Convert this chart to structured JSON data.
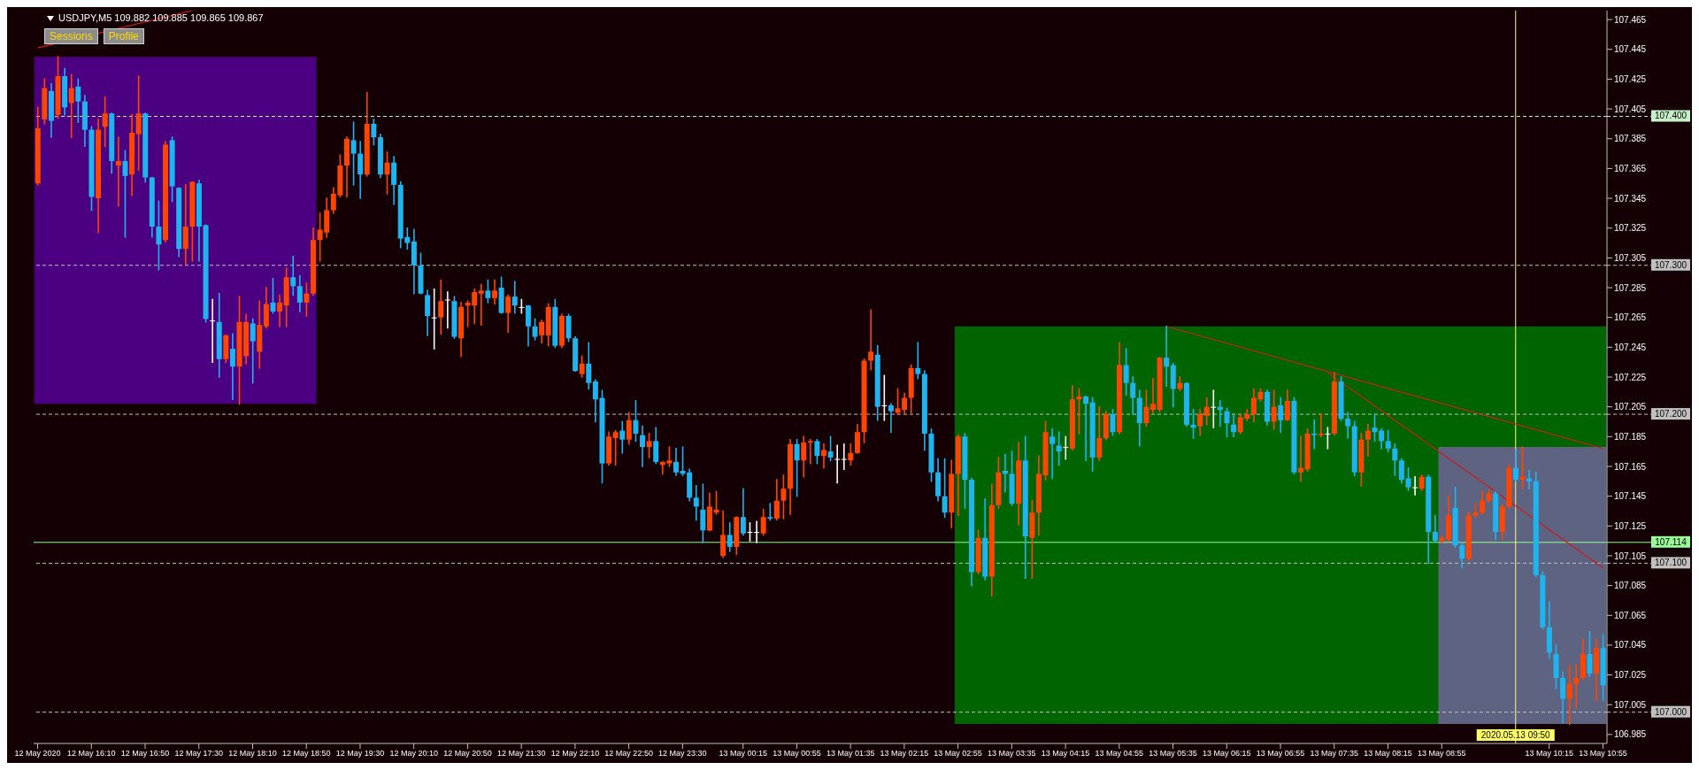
{
  "chart_data": {
    "type": "candlestick",
    "title": "USDJPY,M5 109.882 109.885 109.865 109.867",
    "annotations": [
      "Sessions",
      "Profile"
    ],
    "colors": [
      "#ff4500",
      "#ff4500",
      "#1eb4f0",
      "#ff4500",
      "#1eb4f0",
      "#ff4500",
      "#1eb4f0",
      "#1eb4f0",
      "#1eb4f0",
      "#ff4500",
      "#ff4500",
      "#1eb4f0",
      "#ff4500",
      "#1eb4f0",
      "#ff4500",
      "#ff4500",
      "#1eb4f0",
      "#1eb4f0",
      "#1eb4f0",
      "#ff4500",
      "#1eb4f0",
      "#1eb4f0",
      "#ff4500",
      "#ff4500",
      "#1eb4f0",
      "#1eb4f0",
      "#ffffff",
      "#1eb4f0",
      "#ff4500",
      "#1eb4f0",
      "#ff4500",
      "#ff4500",
      "#1eb4f0",
      "#ff4500",
      "#ff4500",
      "#1eb4f0",
      "#ff4500",
      "#ff4500",
      "#1eb4f0",
      "#1eb4f0",
      "#ff4500",
      "#ff4500",
      "#ff4500",
      "#ff4500",
      "#ff4500",
      "#ff4500",
      "#ff4500",
      "#1eb4f0",
      "#1eb4f0",
      "#ff4500",
      "#1eb4f0",
      "#1eb4f0",
      "#ff4500",
      "#1eb4f0",
      "#1eb4f0",
      "#1eb4f0",
      "#1eb4f0",
      "#1eb4f0",
      "#1eb4f0",
      "#ffffff",
      "#ff4500",
      "#ffffff",
      "#1eb4f0",
      "#ff4500",
      "#ff4500",
      "#ff4500",
      "#ff4500",
      "#1eb4f0",
      "#ff4500",
      "#1eb4f0",
      "#ff4500",
      "#1eb4f0",
      "#ffffff",
      "#1eb4f0",
      "#1eb4f0",
      "#ff4500",
      "#ff4500",
      "#1eb4f0",
      "#ff4500",
      "#1eb4f0",
      "#1eb4f0",
      "#ff4500",
      "#1eb4f0",
      "#1eb4f0",
      "#1eb4f0",
      "#ff4500",
      "#ff4500",
      "#1eb4f0",
      "#ff4500",
      "#1eb4f0",
      "#1eb4f0",
      "#ff4500",
      "#1eb4f0",
      "#ff4500",
      "#ff4500",
      "#1eb4f0",
      "#1eb4f0",
      "#1eb4f0",
      "#1eb4f0",
      "#1eb4f0",
      "#ff4500",
      "#ff4500",
      "#ff4500",
      "#1eb4f0",
      "#ff4500",
      "#1eb4f0",
      "#ffffff",
      "#ffffff",
      "#ff4500",
      "#1eb4f0",
      "#ff4500",
      "#ff4500",
      "#ff4500",
      "#1eb4f0",
      "#ff4500",
      "#ff4500",
      "#1eb4f0",
      "#ff4500",
      "#1eb4f0",
      "#ffffff",
      "#ffffff",
      "#ff4500",
      "#ff4500",
      "#ff4500",
      "#ff4500",
      "#1eb4f0",
      "#ffffff",
      "#1eb4f0",
      "#ff4500",
      "#ff4500",
      "#ff4500",
      "#1eb4f0",
      "#1eb4f0",
      "#1eb4f0",
      "#1eb4f0",
      "#1eb4f0",
      "#ff4500",
      "#ff4500",
      "#1eb4f0",
      "#1eb4f0",
      "#ff4500",
      "#1eb4f0",
      "#ff4500",
      "#ff4500",
      "#1eb4f0",
      "#1eb4f0",
      "#ff4500",
      "#1eb4f0",
      "#ff4500",
      "#ff4500",
      "#ff4500",
      "#1eb4f0",
      "#1eb4f0",
      "#ffffff",
      "#ff4500",
      "#ff4500",
      "#1eb4f0",
      "#1eb4f0",
      "#ff4500",
      "#ff4500",
      "#1eb4f0",
      "#ff4500",
      "#1eb4f0",
      "#1eb4f0",
      "#1eb4f0",
      "#ff4500",
      "#ff4500",
      "#ff4500",
      "#1eb4f0",
      "#1eb4f0",
      "#ff4500",
      "#1eb4f0",
      "#1eb4f0",
      "#ff4500",
      "#ff4500",
      "#ffffff",
      "#1eb4f0",
      "#1eb4f0",
      "#1eb4f0",
      "#ff4500",
      "#ff4500",
      "#ff4500",
      "#ff4500",
      "#1eb4f0",
      "#ff4500",
      "#1eb4f0",
      "#ff4500",
      "#1eb4f0",
      "#ff4500",
      "#ff4500",
      "#1eb4f0",
      "#ff4500",
      "#ffffff",
      "#ff4500",
      "#1eb4f0",
      "#1eb4f0",
      "#1eb4f0",
      "#ff4500",
      "#ff4500",
      "#1eb4f0",
      "#1eb4f0",
      "#1eb4f0",
      "#1eb4f0",
      "#1eb4f0",
      "#1eb4f0",
      "#ffffff",
      "#ff4500",
      "#1eb4f0",
      "#1eb4f0",
      "#ff4500",
      "#ff4500",
      "#1eb4f0",
      "#1eb4f0",
      "#ff4500",
      "#ff4500",
      "#ff4500",
      "#ff4500",
      "#1eb4f0",
      "#ff4500",
      "#ff4500",
      "#1eb4f0",
      "#ff4500",
      "#1eb4f0",
      "#1eb4f0",
      "#1eb4f0",
      "#1eb4f0",
      "#1eb4f0",
      "#1eb4f0",
      "#ff4500",
      "#ff4500",
      "#ff4500",
      "#1eb4f0",
      "#ff4500",
      "#1eb4f0"
    ],
    "x": [
      "2020-05-12T15:30",
      "2020-05-12T15:35",
      "2020-05-12T15:40",
      "2020-05-12T15:45",
      "2020-05-12T15:50",
      "2020-05-12T15:55",
      "2020-05-12T16:00",
      "2020-05-12T16:05",
      "2020-05-12T16:10",
      "2020-05-12T16:15",
      "2020-05-12T16:20",
      "2020-05-12T16:25",
      "2020-05-12T16:30",
      "2020-05-12T16:35",
      "2020-05-12T16:40",
      "2020-05-12T16:45",
      "2020-05-12T16:50",
      "2020-05-12T16:55",
      "2020-05-12T17:00",
      "2020-05-12T17:05",
      "2020-05-12T17:10",
      "2020-05-12T17:15",
      "2020-05-12T17:20",
      "2020-05-12T17:25",
      "2020-05-12T17:30",
      "2020-05-12T17:35",
      "2020-05-12T17:40",
      "2020-05-12T17:45",
      "2020-05-12T17:50",
      "2020-05-12T17:55",
      "2020-05-12T18:00",
      "2020-05-12T18:05",
      "2020-05-12T18:10",
      "2020-05-12T18:15",
      "2020-05-12T18:20",
      "2020-05-12T18:25",
      "2020-05-12T18:30",
      "2020-05-12T18:35",
      "2020-05-12T18:40",
      "2020-05-12T18:45",
      "2020-05-12T18:50",
      "2020-05-12T18:55",
      "2020-05-12T19:00",
      "2020-05-12T19:05",
      "2020-05-12T19:10",
      "2020-05-12T19:15",
      "2020-05-12T19:20",
      "2020-05-12T19:25",
      "2020-05-12T19:30",
      "2020-05-12T19:35",
      "2020-05-12T19:40",
      "2020-05-12T19:45",
      "2020-05-12T19:50",
      "2020-05-12T19:55",
      "2020-05-12T20:00",
      "2020-05-12T20:05",
      "2020-05-12T20:10",
      "2020-05-12T20:15",
      "2020-05-12T20:20",
      "2020-05-12T20:25",
      "2020-05-12T20:30",
      "2020-05-12T20:35",
      "2020-05-12T20:40",
      "2020-05-12T20:45",
      "2020-05-12T20:50",
      "2020-05-12T20:55",
      "2020-05-12T21:00",
      "2020-05-12T21:05",
      "2020-05-12T21:10",
      "2020-05-12T21:15",
      "2020-05-12T21:20",
      "2020-05-12T21:25",
      "2020-05-12T21:30",
      "2020-05-12T21:35",
      "2020-05-12T21:40",
      "2020-05-12T21:45",
      "2020-05-12T21:50",
      "2020-05-12T21:55",
      "2020-05-12T22:00",
      "2020-05-12T22:05",
      "2020-05-12T22:10",
      "2020-05-12T22:15",
      "2020-05-12T22:20",
      "2020-05-12T22:25",
      "2020-05-12T22:30",
      "2020-05-12T22:35",
      "2020-05-12T22:40",
      "2020-05-12T22:45",
      "2020-05-12T22:50",
      "2020-05-12T22:55",
      "2020-05-12T23:00",
      "2020-05-12T23:05",
      "2020-05-12T23:10",
      "2020-05-12T23:15",
      "2020-05-12T23:20",
      "2020-05-12T23:25",
      "2020-05-12T23:30",
      "2020-05-12T23:35",
      "2020-05-12T23:40",
      "2020-05-12T23:45",
      "2020-05-12T23:50",
      "2020-05-12T23:55",
      "2020-05-13T00:00",
      "2020-05-13T00:05",
      "2020-05-13T00:10",
      "2020-05-13T00:15",
      "2020-05-13T00:20",
      "2020-05-13T00:25",
      "2020-05-13T00:30",
      "2020-05-13T00:35",
      "2020-05-13T00:40",
      "2020-05-13T00:45",
      "2020-05-13T00:50",
      "2020-05-13T00:55",
      "2020-05-13T01:00",
      "2020-05-13T01:05",
      "2020-05-13T01:10",
      "2020-05-13T01:15",
      "2020-05-13T01:20",
      "2020-05-13T01:25",
      "2020-05-13T01:30",
      "2020-05-13T01:35",
      "2020-05-13T01:40",
      "2020-05-13T01:45",
      "2020-05-13T01:50",
      "2020-05-13T01:55",
      "2020-05-13T02:00",
      "2020-05-13T02:05",
      "2020-05-13T02:10",
      "2020-05-13T02:15",
      "2020-05-13T02:20",
      "2020-05-13T02:25",
      "2020-05-13T02:30",
      "2020-05-13T02:35",
      "2020-05-13T02:40",
      "2020-05-13T02:45",
      "2020-05-13T02:50",
      "2020-05-13T02:55",
      "2020-05-13T03:00",
      "2020-05-13T03:05",
      "2020-05-13T03:10",
      "2020-05-13T03:15",
      "2020-05-13T03:20",
      "2020-05-13T03:25",
      "2020-05-13T03:30",
      "2020-05-13T03:35",
      "2020-05-13T03:40",
      "2020-05-13T03:45",
      "2020-05-13T03:50",
      "2020-05-13T03:55",
      "2020-05-13T04:00",
      "2020-05-13T04:05",
      "2020-05-13T04:10",
      "2020-05-13T04:15",
      "2020-05-13T04:20",
      "2020-05-13T04:25",
      "2020-05-13T04:30",
      "2020-05-13T04:35",
      "2020-05-13T04:40",
      "2020-05-13T04:45",
      "2020-05-13T04:50",
      "2020-05-13T04:55",
      "2020-05-13T05:00",
      "2020-05-13T05:05",
      "2020-05-13T05:10",
      "2020-05-13T05:15",
      "2020-05-13T05:20",
      "2020-05-13T05:25",
      "2020-05-13T05:30",
      "2020-05-13T05:35",
      "2020-05-13T05:40",
      "2020-05-13T05:45",
      "2020-05-13T05:50",
      "2020-05-13T05:55",
      "2020-05-13T06:00",
      "2020-05-13T06:05",
      "2020-05-13T06:10",
      "2020-05-13T06:15",
      "2020-05-13T06:20",
      "2020-05-13T06:25",
      "2020-05-13T06:30",
      "2020-05-13T06:35",
      "2020-05-13T06:40",
      "2020-05-13T06:45",
      "2020-05-13T06:50",
      "2020-05-13T06:55",
      "2020-05-13T07:00",
      "2020-05-13T07:05",
      "2020-05-13T07:10",
      "2020-05-13T07:15",
      "2020-05-13T07:20",
      "2020-05-13T07:25",
      "2020-05-13T07:30",
      "2020-05-13T07:35",
      "2020-05-13T07:40",
      "2020-05-13T07:45",
      "2020-05-13T07:50",
      "2020-05-13T07:55",
      "2020-05-13T08:00",
      "2020-05-13T08:05",
      "2020-05-13T08:10",
      "2020-05-13T08:15",
      "2020-05-13T08:20",
      "2020-05-13T08:25",
      "2020-05-13T08:30",
      "2020-05-13T08:35",
      "2020-05-13T08:40",
      "2020-05-13T08:45",
      "2020-05-13T08:50",
      "2020-05-13T08:55",
      "2020-05-13T09:00",
      "2020-05-13T09:05",
      "2020-05-13T09:10",
      "2020-05-13T09:15",
      "2020-05-13T09:20",
      "2020-05-13T09:25",
      "2020-05-13T09:30",
      "2020-05-13T09:35",
      "2020-05-13T09:40",
      "2020-05-13T09:45",
      "2020-05-13T09:50",
      "2020-05-13T09:55",
      "2020-05-13T10:00",
      "2020-05-13T10:05",
      "2020-05-13T10:10",
      "2020-05-13T10:15",
      "2020-05-13T10:20",
      "2020-05-13T10:25",
      "2020-05-13T10:30",
      "2020-05-13T10:35",
      "2020-05-13T10:40",
      "2020-05-13T10:45",
      "2020-05-13T10:50",
      "2020-05-13T10:55"
    ],
    "ohlc": [
      [
        107.355,
        107.406,
        107.354,
        107.392
      ],
      [
        107.398,
        107.425,
        107.395,
        107.419
      ],
      [
        107.417,
        107.422,
        107.386,
        107.397
      ],
      [
        107.401,
        107.44,
        107.399,
        107.427
      ],
      [
        107.427,
        107.432,
        107.401,
        107.406
      ],
      [
        107.409,
        107.428,
        107.386,
        107.419
      ],
      [
        107.42,
        107.425,
        107.396,
        107.41
      ],
      [
        107.41,
        107.414,
        107.38,
        107.391
      ],
      [
        107.391,
        107.393,
        107.337,
        107.346
      ],
      [
        107.345,
        107.398,
        107.322,
        107.391
      ],
      [
        107.393,
        107.413,
        107.38,
        107.402
      ],
      [
        107.402,
        107.402,
        107.362,
        107.37
      ],
      [
        107.367,
        107.386,
        107.34,
        107.37
      ],
      [
        107.37,
        107.377,
        107.319,
        107.36
      ],
      [
        107.361,
        107.401,
        107.347,
        107.389
      ],
      [
        107.388,
        107.427,
        107.364,
        107.402
      ],
      [
        107.402,
        107.402,
        107.356,
        107.359
      ],
      [
        107.359,
        107.359,
        107.319,
        107.326
      ],
      [
        107.326,
        107.343,
        107.297,
        107.314
      ],
      [
        107.317,
        107.383,
        107.316,
        107.381
      ],
      [
        107.384,
        107.386,
        107.343,
        107.353
      ],
      [
        107.352,
        107.352,
        107.306,
        107.311
      ],
      [
        107.311,
        107.354,
        107.301,
        107.326
      ],
      [
        107.326,
        107.356,
        107.303,
        107.356
      ],
      [
        107.355,
        107.357,
        107.303,
        107.326
      ],
      [
        107.327,
        107.327,
        107.262,
        107.264
      ],
      [
        107.263,
        107.277,
        107.235,
        107.263
      ],
      [
        107.262,
        107.281,
        107.225,
        107.237
      ],
      [
        107.237,
        107.253,
        107.235,
        107.253
      ],
      [
        107.244,
        107.254,
        107.21,
        107.232
      ],
      [
        107.232,
        107.279,
        107.207,
        107.262
      ],
      [
        107.239,
        107.267,
        107.234,
        107.262
      ],
      [
        107.261,
        107.264,
        107.221,
        107.249
      ],
      [
        107.242,
        107.276,
        107.231,
        107.26
      ],
      [
        107.259,
        107.285,
        107.258,
        107.274
      ],
      [
        107.275,
        107.291,
        107.268,
        107.269
      ],
      [
        107.269,
        107.28,
        107.259,
        107.275
      ],
      [
        107.273,
        107.298,
        107.259,
        107.292
      ],
      [
        107.292,
        107.306,
        107.28,
        107.286
      ],
      [
        107.286,
        107.293,
        107.269,
        107.275
      ],
      [
        107.275,
        107.288,
        107.266,
        107.281
      ],
      [
        107.281,
        107.325,
        107.28,
        107.317
      ],
      [
        107.317,
        107.335,
        107.303,
        107.324
      ],
      [
        107.322,
        107.345,
        107.319,
        107.337
      ],
      [
        107.337,
        107.352,
        107.335,
        107.348
      ],
      [
        107.347,
        107.374,
        107.346,
        107.367
      ],
      [
        107.367,
        107.386,
        107.346,
        107.385
      ],
      [
        107.384,
        107.396,
        107.354,
        107.375
      ],
      [
        107.375,
        107.383,
        107.345,
        107.361
      ],
      [
        107.361,
        107.416,
        107.36,
        107.395
      ],
      [
        107.395,
        107.398,
        107.381,
        107.386
      ],
      [
        107.386,
        107.388,
        107.359,
        107.361
      ],
      [
        107.361,
        107.376,
        107.348,
        107.369
      ],
      [
        107.369,
        107.373,
        107.341,
        107.354
      ],
      [
        107.354,
        107.356,
        107.312,
        107.318
      ],
      [
        107.319,
        107.325,
        107.311,
        107.315
      ],
      [
        107.316,
        107.324,
        107.281,
        107.3
      ],
      [
        107.3,
        107.308,
        107.281,
        107.281
      ],
      [
        107.28,
        107.283,
        107.253,
        107.266
      ],
      [
        107.265,
        107.284,
        107.244,
        107.265
      ],
      [
        107.265,
        107.29,
        107.254,
        107.276
      ],
      [
        107.277,
        107.282,
        107.258,
        107.277
      ],
      [
        107.276,
        107.279,
        107.251,
        107.252
      ],
      [
        107.251,
        107.275,
        107.239,
        107.272
      ],
      [
        107.273,
        107.276,
        107.259,
        107.275
      ],
      [
        107.273,
        107.284,
        107.261,
        107.282
      ],
      [
        107.281,
        107.287,
        107.26,
        107.283
      ],
      [
        107.283,
        107.29,
        107.275,
        107.278
      ],
      [
        107.278,
        107.29,
        107.274,
        107.283
      ],
      [
        107.285,
        107.292,
        107.268,
        107.268
      ],
      [
        107.268,
        107.28,
        107.255,
        107.279
      ],
      [
        107.279,
        107.289,
        107.268,
        107.273
      ],
      [
        107.272,
        107.277,
        107.268,
        107.272
      ],
      [
        107.273,
        107.273,
        107.246,
        107.259
      ],
      [
        107.259,
        107.264,
        107.25,
        107.252
      ],
      [
        107.253,
        107.263,
        107.248,
        107.262
      ],
      [
        107.253,
        107.274,
        107.246,
        107.272
      ],
      [
        107.272,
        107.277,
        107.245,
        107.246
      ],
      [
        107.246,
        107.267,
        107.245,
        107.266
      ],
      [
        107.266,
        107.267,
        107.249,
        107.251
      ],
      [
        107.251,
        107.252,
        107.229,
        107.229
      ],
      [
        107.227,
        107.239,
        107.225,
        107.234
      ],
      [
        107.234,
        107.248,
        107.217,
        107.221
      ],
      [
        107.222,
        107.223,
        107.195,
        107.21
      ],
      [
        107.211,
        107.216,
        107.154,
        107.167
      ],
      [
        107.167,
        107.188,
        107.166,
        107.185
      ],
      [
        107.184,
        107.189,
        107.166,
        107.188
      ],
      [
        107.189,
        107.195,
        107.174,
        107.183
      ],
      [
        107.183,
        107.201,
        107.18,
        107.196
      ],
      [
        107.196,
        107.209,
        107.182,
        107.187
      ],
      [
        107.186,
        107.192,
        107.165,
        107.178
      ],
      [
        107.178,
        107.187,
        107.171,
        107.182
      ],
      [
        107.182,
        107.191,
        107.167,
        107.168
      ],
      [
        107.166,
        107.168,
        107.16,
        107.168
      ],
      [
        107.167,
        107.178,
        107.165,
        107.169
      ],
      [
        107.168,
        107.177,
        107.159,
        107.161
      ],
      [
        107.162,
        107.178,
        107.159,
        107.16
      ],
      [
        107.161,
        107.163,
        107.142,
        107.144
      ],
      [
        107.144,
        107.152,
        107.129,
        107.138
      ],
      [
        107.136,
        107.153,
        107.114,
        107.122
      ],
      [
        107.122,
        107.147,
        107.122,
        107.138
      ],
      [
        107.134,
        107.148,
        107.133,
        107.136
      ],
      [
        107.105,
        107.135,
        107.104,
        107.119
      ],
      [
        107.119,
        107.127,
        107.108,
        107.111
      ],
      [
        107.111,
        107.131,
        107.106,
        107.131
      ],
      [
        107.131,
        107.15,
        107.119,
        107.12
      ],
      [
        107.121,
        107.127,
        107.115,
        107.121
      ],
      [
        107.121,
        107.128,
        107.114,
        107.121
      ],
      [
        107.12,
        107.136,
        107.119,
        107.131
      ],
      [
        107.131,
        107.14,
        107.129,
        107.13
      ],
      [
        107.13,
        107.156,
        107.129,
        107.142
      ],
      [
        107.142,
        107.159,
        107.13,
        107.15
      ],
      [
        107.15,
        107.183,
        107.133,
        107.18
      ],
      [
        107.18,
        107.183,
        107.145,
        107.169
      ],
      [
        107.169,
        107.185,
        107.158,
        107.181
      ],
      [
        107.181,
        107.183,
        107.167,
        107.182
      ],
      [
        107.182,
        107.183,
        107.167,
        107.172
      ],
      [
        107.172,
        107.18,
        107.164,
        107.176
      ],
      [
        107.175,
        107.185,
        107.169,
        107.171
      ],
      [
        107.17,
        107.179,
        107.154,
        107.17
      ],
      [
        107.17,
        107.18,
        107.163,
        107.17
      ],
      [
        107.169,
        107.18,
        107.166,
        107.174
      ],
      [
        107.174,
        107.193,
        107.174,
        107.188
      ],
      [
        107.188,
        107.237,
        107.181,
        107.236
      ],
      [
        107.236,
        107.27,
        107.23,
        107.242
      ],
      [
        107.24,
        107.246,
        107.196,
        107.205
      ],
      [
        107.206,
        107.226,
        107.196,
        107.206
      ],
      [
        107.206,
        107.207,
        107.188,
        107.202
      ],
      [
        107.201,
        107.217,
        107.2,
        107.204
      ],
      [
        107.203,
        107.214,
        107.2,
        107.211
      ],
      [
        107.211,
        107.233,
        107.201,
        107.231
      ],
      [
        107.231,
        107.248,
        107.224,
        107.227
      ],
      [
        107.227,
        107.229,
        107.176,
        107.187
      ],
      [
        107.187,
        107.19,
        107.155,
        107.161
      ],
      [
        107.161,
        107.17,
        107.142,
        107.145
      ],
      [
        107.145,
        107.17,
        107.131,
        107.134
      ],
      [
        107.134,
        107.169,
        107.124,
        107.16
      ],
      [
        107.16,
        107.186,
        107.132,
        107.185
      ],
      [
        107.185,
        107.187,
        107.137,
        107.156
      ],
      [
        107.156,
        107.157,
        107.085,
        107.094
      ],
      [
        107.094,
        107.122,
        107.093,
        107.117
      ],
      [
        107.117,
        107.143,
        107.089,
        107.091
      ],
      [
        107.091,
        107.153,
        107.078,
        107.139
      ],
      [
        107.139,
        107.171,
        107.137,
        107.161
      ],
      [
        107.162,
        107.173,
        107.148,
        107.16
      ],
      [
        107.16,
        107.175,
        107.139,
        107.14
      ],
      [
        107.14,
        107.181,
        107.126,
        107.169
      ],
      [
        107.169,
        107.185,
        107.09,
        107.118
      ],
      [
        107.117,
        107.142,
        107.09,
        107.134
      ],
      [
        107.134,
        107.172,
        107.119,
        107.16
      ],
      [
        107.159,
        107.195,
        107.156,
        107.188
      ],
      [
        107.185,
        107.19,
        107.157,
        107.18
      ],
      [
        107.179,
        107.188,
        107.166,
        107.175
      ],
      [
        107.178,
        107.185,
        107.17,
        107.178
      ],
      [
        107.177,
        107.219,
        107.176,
        107.21
      ],
      [
        107.21,
        107.217,
        107.187,
        107.212
      ],
      [
        107.212,
        107.212,
        107.169,
        107.207
      ],
      [
        107.208,
        107.211,
        107.162,
        107.171
      ],
      [
        107.171,
        107.205,
        107.169,
        107.184
      ],
      [
        107.184,
        107.202,
        107.183,
        107.2
      ],
      [
        107.2,
        107.203,
        107.186,
        107.188
      ],
      [
        107.188,
        107.248,
        107.187,
        107.233
      ],
      [
        107.233,
        107.244,
        107.213,
        107.221
      ],
      [
        107.221,
        107.225,
        107.2,
        107.211
      ],
      [
        107.211,
        107.216,
        107.179,
        107.194
      ],
      [
        107.194,
        107.216,
        107.192,
        107.205
      ],
      [
        107.203,
        107.224,
        107.201,
        107.207
      ],
      [
        107.203,
        107.238,
        107.202,
        107.238
      ],
      [
        107.238,
        107.259,
        107.219,
        107.232
      ],
      [
        107.233,
        107.234,
        107.205,
        107.217
      ],
      [
        107.217,
        107.225,
        107.216,
        107.221
      ],
      [
        107.221,
        107.221,
        107.192,
        107.193
      ],
      [
        107.193,
        107.203,
        107.184,
        107.191
      ],
      [
        107.192,
        107.203,
        107.186,
        107.2
      ],
      [
        107.199,
        107.211,
        107.193,
        107.205
      ],
      [
        107.205,
        107.216,
        107.191,
        107.205
      ],
      [
        107.205,
        107.209,
        107.192,
        107.203
      ],
      [
        107.202,
        107.204,
        107.185,
        107.194
      ],
      [
        107.193,
        107.2,
        107.185,
        107.188
      ],
      [
        107.188,
        107.2,
        107.187,
        107.198
      ],
      [
        107.197,
        107.203,
        107.196,
        107.2
      ],
      [
        107.2,
        107.217,
        107.195,
        107.211
      ],
      [
        107.21,
        107.217,
        107.209,
        107.215
      ],
      [
        107.215,
        107.216,
        107.193,
        107.195
      ],
      [
        107.195,
        107.216,
        107.19,
        107.205
      ],
      [
        107.206,
        107.211,
        107.188,
        107.196
      ],
      [
        107.196,
        107.216,
        107.196,
        107.209
      ],
      [
        107.209,
        107.211,
        107.16,
        107.161
      ],
      [
        107.161,
        107.185,
        107.155,
        107.164
      ],
      [
        107.163,
        107.19,
        107.162,
        107.187
      ],
      [
        107.187,
        107.196,
        107.177,
        107.186
      ],
      [
        107.186,
        107.2,
        107.185,
        107.187
      ],
      [
        107.187,
        107.191,
        107.177,
        107.187
      ],
      [
        107.187,
        107.228,
        107.186,
        107.222
      ],
      [
        107.222,
        107.225,
        107.196,
        107.197
      ],
      [
        107.197,
        107.201,
        107.184,
        107.192
      ],
      [
        107.192,
        107.195,
        107.159,
        107.161
      ],
      [
        107.161,
        107.187,
        107.152,
        107.183
      ],
      [
        107.183,
        107.193,
        107.172,
        107.189
      ],
      [
        107.191,
        107.2,
        107.182,
        107.188
      ],
      [
        107.189,
        107.19,
        107.177,
        107.182
      ],
      [
        107.182,
        107.189,
        107.175,
        107.177
      ],
      [
        107.177,
        107.18,
        107.159,
        107.169
      ],
      [
        107.169,
        107.17,
        107.154,
        107.156
      ],
      [
        107.157,
        107.164,
        107.149,
        107.151
      ],
      [
        107.151,
        107.158,
        107.146,
        107.151
      ],
      [
        107.15,
        107.159,
        107.149,
        107.158
      ],
      [
        107.158,
        107.159,
        107.1,
        107.121
      ],
      [
        107.121,
        107.132,
        107.114,
        107.115
      ],
      [
        107.115,
        107.118,
        107.114,
        107.117
      ],
      [
        107.116,
        107.145,
        107.115,
        107.132
      ],
      [
        107.137,
        107.151,
        107.111,
        107.112
      ],
      [
        107.112,
        107.114,
        107.097,
        107.103
      ],
      [
        107.103,
        107.134,
        107.102,
        107.132
      ],
      [
        107.132,
        107.14,
        107.131,
        107.134
      ],
      [
        107.134,
        107.148,
        107.133,
        107.142
      ],
      [
        107.142,
        107.149,
        107.141,
        107.147
      ],
      [
        107.147,
        107.148,
        107.116,
        107.121
      ],
      [
        107.121,
        107.139,
        107.116,
        107.138
      ],
      [
        107.138,
        107.166,
        107.137,
        107.164
      ],
      [
        107.164,
        107.176,
        107.155,
        107.156
      ],
      [
        107.156,
        107.178,
        107.15,
        107.158
      ],
      [
        107.157,
        107.162,
        107.15,
        107.155
      ],
      [
        107.155,
        107.161,
        107.091,
        107.092
      ],
      [
        107.092,
        107.094,
        107.056,
        107.057
      ],
      [
        107.057,
        107.074,
        107.036,
        107.04
      ],
      [
        107.039,
        107.045,
        107.016,
        107.023
      ],
      [
        107.023,
        107.027,
        106.993,
        107.009
      ],
      [
        107.009,
        107.031,
        106.992,
        107.019
      ],
      [
        107.019,
        107.032,
        107.003,
        107.023
      ],
      [
        107.023,
        107.049,
        107.022,
        107.039
      ],
      [
        107.039,
        107.054,
        107.024,
        107.026
      ],
      [
        107.026,
        107.049,
        107.008,
        107.043
      ],
      [
        107.043,
        107.052,
        107.008,
        107.018
      ]
    ],
    "series": [
      {
        "type": "line",
        "color": "#c81e1e",
        "x": [
          "2020-05-12T15:30",
          "2020-05-12T17:25"
        ],
        "values": [
          107.446,
          107.471
        ]
      },
      {
        "type": "line",
        "color": "#c81e1e",
        "x": [
          "2020-05-13T05:30",
          "2020-05-13T10:55"
        ],
        "values": [
          107.259,
          107.177
        ]
      },
      {
        "type": "line",
        "color": "#c81e1e",
        "x": [
          "2020-05-13T07:30",
          "2020-05-13T10:55"
        ],
        "values": [
          107.228,
          107.097
        ]
      }
    ],
    "bands": [
      {
        "axis": "x",
        "from": "2020-05-12T15:30",
        "to": "2020-05-12T18:55",
        "color": "#4b0082"
      },
      {
        "axis": "x",
        "from": "2020-05-13T02:55",
        "to": "2020-05-13T10:55",
        "color": "#006400"
      },
      {
        "axis": "x",
        "from": "2020-05-13T08:55",
        "to": "2020-05-13T10:55",
        "color": "#5e6381"
      }
    ],
    "ref_lines": [
      {
        "axis": "y",
        "value": 107.4,
        "label": "107.400",
        "color": "#c8f0c8",
        "line_style": "dashed"
      },
      {
        "axis": "y",
        "value": 107.3,
        "label": "107.300",
        "color": "#c0c0c0",
        "line_style": "dashed"
      },
      {
        "axis": "y",
        "value": 107.2,
        "label": "107.200",
        "color": "#c0c0c0",
        "line_style": "dashed"
      },
      {
        "axis": "y",
        "value": 107.114,
        "label": "107.114",
        "color": "#98fb98",
        "line_style": "solid"
      },
      {
        "axis": "y",
        "value": 107.1,
        "label": "107.100",
        "color": "#c0c0c0",
        "line_style": "dashed"
      },
      {
        "axis": "y",
        "value": 107.0,
        "label": "107.000",
        "color": "#c0c0c0",
        "line_style": "dashed"
      },
      {
        "axis": "x",
        "value": "2020-05-13T09:50",
        "label": "2020.05.13 09:50",
        "color": "#ffff66",
        "line_style": "solid"
      }
    ],
    "xlim": [
      "2020-05-12T15:27",
      "2020-05-13T10:58"
    ],
    "xticks": [
      {
        "value": "2020-05-12T15:30",
        "label": "12 May 2020"
      },
      {
        "value": "2020-05-12T16:10",
        "label": "12 May 16:10"
      },
      {
        "value": "2020-05-12T16:50",
        "label": "12 May 16:50"
      },
      {
        "value": "2020-05-12T17:30",
        "label": "12 May 17:30"
      },
      {
        "value": "2020-05-12T18:10",
        "label": "12 May 18:10"
      },
      {
        "value": "2020-05-12T18:50",
        "label": "12 May 18:50"
      },
      {
        "value": "2020-05-12T19:30",
        "label": "12 May 19:30"
      },
      {
        "value": "2020-05-12T20:10",
        "label": "12 May 20:10"
      },
      {
        "value": "2020-05-12T20:50",
        "label": "12 May 20:50"
      },
      {
        "value": "2020-05-12T21:30",
        "label": "12 May 21:30"
      },
      {
        "value": "2020-05-12T22:10",
        "label": "12 May 22:10"
      },
      {
        "value": "2020-05-12T22:50",
        "label": "12 May 22:50"
      },
      {
        "value": "2020-05-12T23:30",
        "label": "12 May 23:30"
      },
      {
        "value": "2020-05-13T00:15",
        "label": "13 May 00:15"
      },
      {
        "value": "2020-05-13T00:55",
        "label": "13 May 00:55"
      },
      {
        "value": "2020-05-13T01:35",
        "label": "13 May 01:35"
      },
      {
        "value": "2020-05-13T02:15",
        "label": "13 May 02:15"
      },
      {
        "value": "2020-05-13T02:55",
        "label": "13 May 02:55"
      },
      {
        "value": "2020-05-13T03:35",
        "label": "13 May 03:35"
      },
      {
        "value": "2020-05-13T04:15",
        "label": "13 May 04:15"
      },
      {
        "value": "2020-05-13T04:55",
        "label": "13 May 04:55"
      },
      {
        "value": "2020-05-13T05:35",
        "label": "13 May 05:35"
      },
      {
        "value": "2020-05-13T06:15",
        "label": "13 May 06:15"
      },
      {
        "value": "2020-05-13T06:55",
        "label": "13 May 06:55"
      },
      {
        "value": "2020-05-13T07:35",
        "label": "13 May 07:35"
      },
      {
        "value": "2020-05-13T08:15",
        "label": "13 May 08:15"
      },
      {
        "value": "2020-05-13T08:55",
        "label": "13 May 08:55"
      },
      {
        "value": "2020-05-13T10:15",
        "label": "13 May 10:15"
      },
      {
        "value": "2020-05-13T10:55",
        "label": "13 May 10:55"
      }
    ],
    "ylim": [
      106.979,
      107.471
    ],
    "yticks": [
      107.465,
      107.445,
      107.425,
      107.405,
      107.385,
      107.365,
      107.345,
      107.325,
      107.305,
      107.285,
      107.265,
      107.245,
      107.225,
      107.205,
      107.185,
      107.165,
      107.145,
      107.125,
      107.105,
      107.085,
      107.065,
      107.045,
      107.025,
      107.005,
      106.985
    ]
  }
}
